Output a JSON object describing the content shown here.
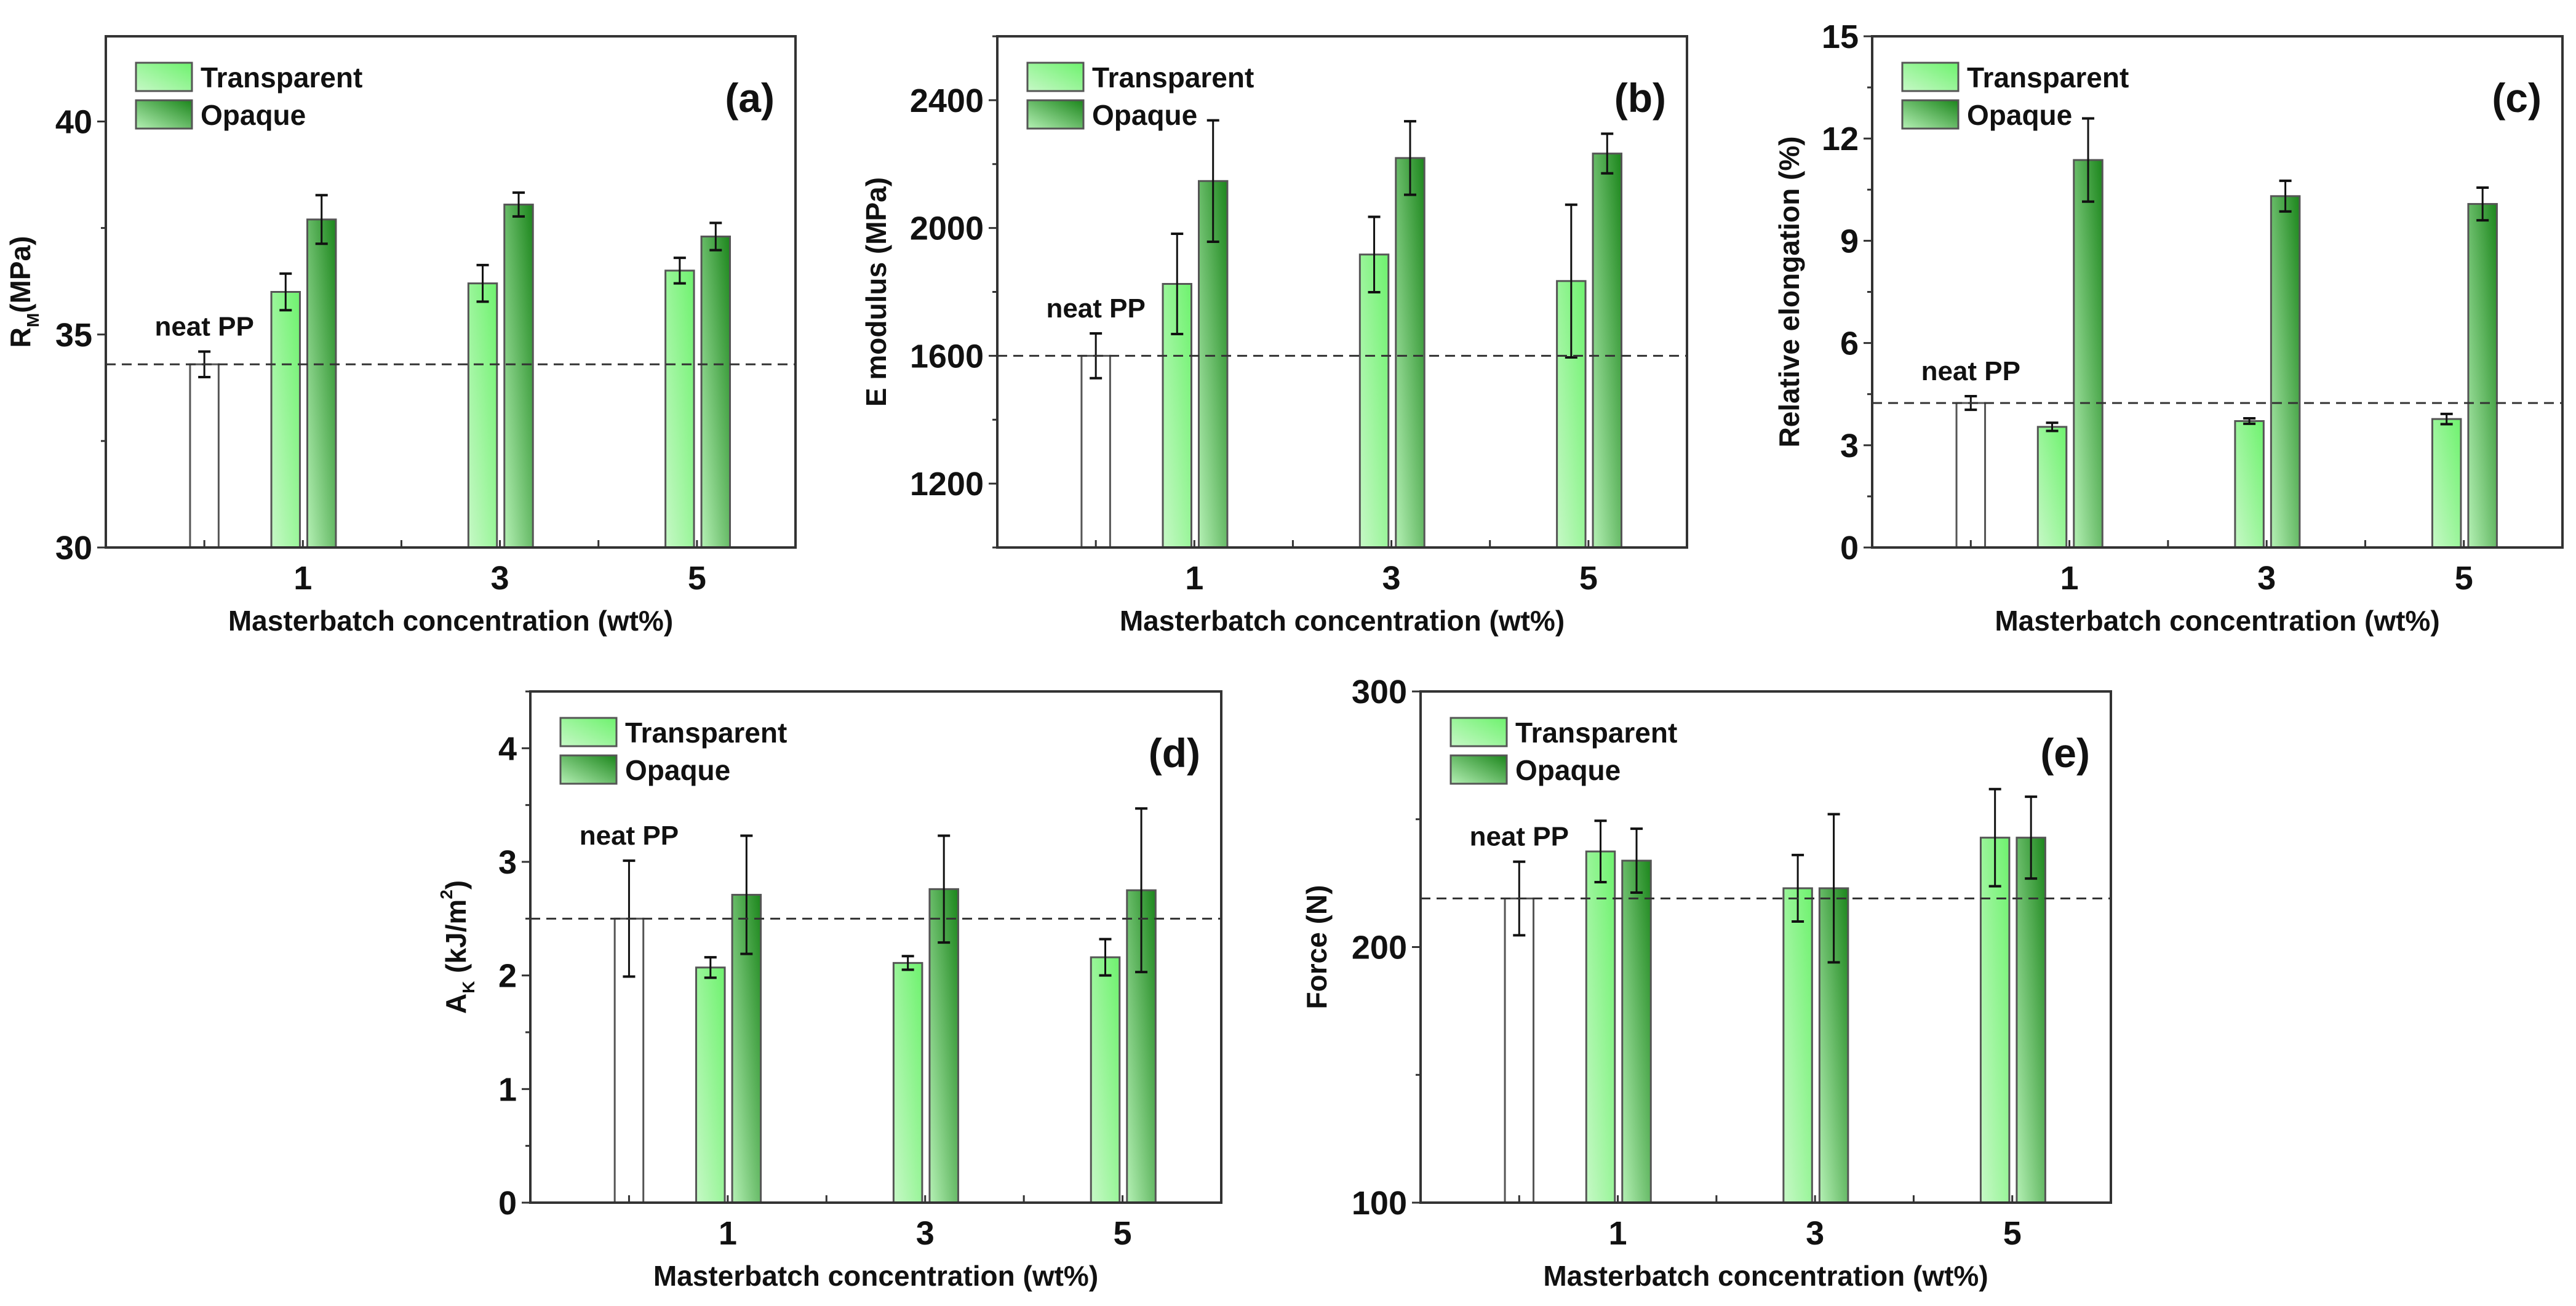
{
  "colors": {
    "transparent_light": "#c6f8c6",
    "transparent": "#6ef26e",
    "opaque_light": "#b4f0b4",
    "opaque": "#1c861c",
    "neat_fill": "#ffffff"
  },
  "chart_data": [
    {
      "panel": "(a)",
      "type": "bar",
      "ylabel": [
        {
          "t": "R"
        },
        {
          "t": "M",
          "sub": true
        },
        {
          "t": "(MPa)"
        }
      ],
      "xlabel": "Masterbatch concentration (wt%)",
      "categories": [
        "1",
        "3",
        "5"
      ],
      "x_positions": [
        1,
        3,
        5
      ],
      "xlim": [
        -1,
        6
      ],
      "ylim": [
        30,
        42
      ],
      "yticks": [
        "30",
        "35",
        "40"
      ],
      "neat": {
        "label": "neat PP",
        "value": 34.3,
        "error": 0.3
      },
      "reference_line": 34.3,
      "series": [
        {
          "name": "Transparent",
          "values": [
            36.0,
            36.2,
            36.5
          ],
          "errors": [
            0.43,
            0.43,
            0.3
          ]
        },
        {
          "name": "Opaque",
          "values": [
            37.7,
            38.05,
            37.3
          ],
          "errors": [
            0.57,
            0.28,
            0.32
          ]
        }
      ],
      "legend": "top-left"
    },
    {
      "panel": "(b)",
      "type": "bar",
      "ylabel": [
        {
          "t": "E modulus (MPa)"
        }
      ],
      "xlabel": "Masterbatch concentration (wt%)",
      "categories": [
        "1",
        "3",
        "5"
      ],
      "x_positions": [
        1,
        3,
        5
      ],
      "xlim": [
        -1,
        6
      ],
      "ylim": [
        1000,
        2600
      ],
      "yticks": [
        "1200",
        "1600",
        "2000",
        "2400"
      ],
      "neat": {
        "label": "neat PP",
        "value": 1600,
        "error": 70
      },
      "reference_line": 1600,
      "series": [
        {
          "name": "Transparent",
          "values": [
            1825,
            1917,
            1834
          ],
          "errors": [
            157,
            118,
            239
          ]
        },
        {
          "name": "Opaque",
          "values": [
            2147,
            2219,
            2233
          ],
          "errors": [
            190,
            115,
            62
          ]
        }
      ],
      "legend": "top-left"
    },
    {
      "panel": "(c)",
      "type": "bar",
      "ylabel": [
        {
          "t": "Relative elongation (%)"
        }
      ],
      "xlabel": "Masterbatch concentration (wt%)",
      "categories": [
        "1",
        "3",
        "5"
      ],
      "x_positions": [
        1,
        3,
        5
      ],
      "xlim": [
        -1,
        6
      ],
      "ylim": [
        0,
        15
      ],
      "yticks": [
        "0",
        "3",
        "6",
        "9",
        "12",
        "15"
      ],
      "neat": {
        "label": "neat PP",
        "value": 4.24,
        "error": 0.2
      },
      "reference_line": 4.24,
      "series": [
        {
          "name": "Transparent",
          "values": [
            3.54,
            3.71,
            3.77
          ],
          "errors": [
            0.12,
            0.08,
            0.15
          ]
        },
        {
          "name": "Opaque",
          "values": [
            11.37,
            10.31,
            10.08
          ],
          "errors": [
            1.22,
            0.45,
            0.48
          ]
        }
      ],
      "legend": "top-left"
    },
    {
      "panel": "(d)",
      "type": "bar",
      "ylabel": [
        {
          "t": "A"
        },
        {
          "t": "K",
          "sub": true
        },
        {
          "t": " (kJ/m"
        },
        {
          "t": "2",
          "sup": true
        },
        {
          "t": ")"
        }
      ],
      "xlabel": "Masterbatch concentration (wt%)",
      "categories": [
        "1",
        "3",
        "5"
      ],
      "x_positions": [
        1,
        3,
        5
      ],
      "xlim": [
        -1,
        6
      ],
      "ylim": [
        0,
        4.5
      ],
      "yticks": [
        "0",
        "1",
        "2",
        "3",
        "4"
      ],
      "neat": {
        "label": "neat PP",
        "value": 2.5,
        "error": 0.51
      },
      "reference_line": 2.5,
      "series": [
        {
          "name": "Transparent",
          "values": [
            2.07,
            2.11,
            2.16
          ],
          "errors": [
            0.09,
            0.06,
            0.16
          ]
        },
        {
          "name": "Opaque",
          "values": [
            2.71,
            2.76,
            2.75
          ],
          "errors": [
            0.52,
            0.47,
            0.72
          ]
        }
      ],
      "legend": "top-left"
    },
    {
      "panel": "(e)",
      "type": "bar",
      "ylabel": [
        {
          "t": "Force (N)"
        }
      ],
      "xlabel": "Masterbatch concentration (wt%)",
      "categories": [
        "1",
        "3",
        "5"
      ],
      "x_positions": [
        1,
        3,
        5
      ],
      "xlim": [
        -1,
        6
      ],
      "ylim": [
        100,
        300
      ],
      "yticks": [
        "100",
        "200",
        "300"
      ],
      "neat": {
        "label": "neat PP",
        "value": 219,
        "error": 14.4
      },
      "reference_line": 219,
      "series": [
        {
          "name": "Transparent",
          "values": [
            237.4,
            223,
            242.8
          ],
          "errors": [
            12,
            13,
            19
          ]
        },
        {
          "name": "Opaque",
          "values": [
            233.8,
            223,
            242.8
          ],
          "errors": [
            12.5,
            29,
            16
          ]
        }
      ],
      "legend": "top-left"
    }
  ]
}
